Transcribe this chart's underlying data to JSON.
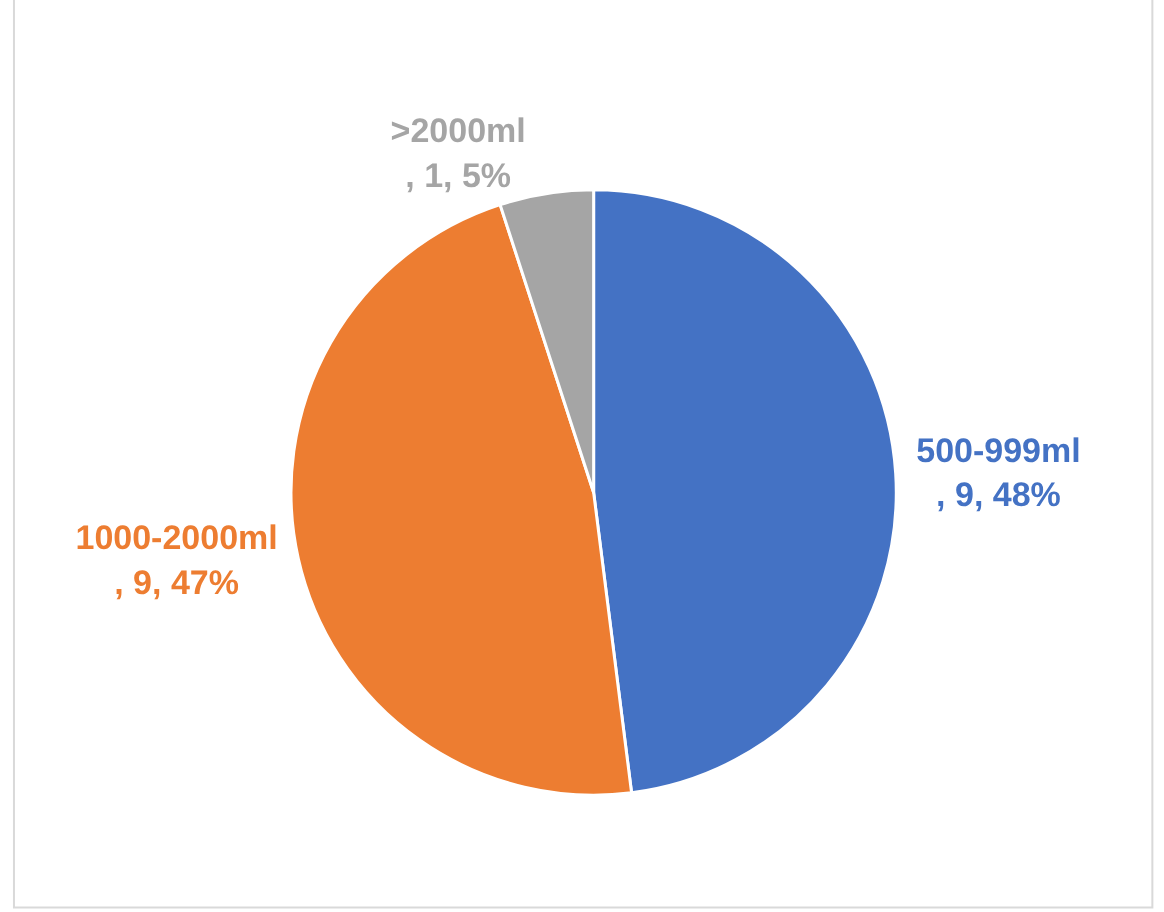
{
  "chart_data": {
    "type": "pie",
    "categories": [
      "500-999ml",
      "1000-2000ml",
      ">2000ml"
    ],
    "values": [
      48,
      47,
      5
    ],
    "value_labels": [
      ", 9, 48%",
      ", 9, 47%",
      ", 1, 5%"
    ],
    "colors": [
      "#4472c4",
      "#ed7d31",
      "#a5a5a5"
    ],
    "legend": false
  }
}
